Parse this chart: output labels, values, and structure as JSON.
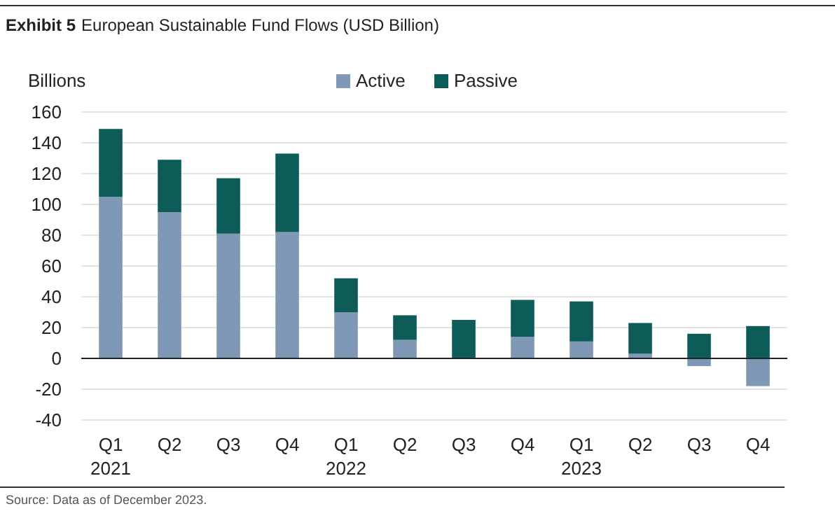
{
  "chart_data": {
    "type": "bar",
    "title": "Exhibit 5",
    "subtitle": "European Sustainable Fund Flows (USD Billion)",
    "ylabel": "Billions",
    "categories": [
      "Q1\n2021",
      "Q2",
      "Q3",
      "Q4",
      "Q1\n2022",
      "Q2",
      "Q3",
      "Q4",
      "Q1\n2023",
      "Q2",
      "Q3",
      "Q4"
    ],
    "series": [
      {
        "name": "Active",
        "color": "#7f98b5",
        "values": [
          105,
          95,
          81,
          82,
          30,
          12,
          0,
          14,
          11,
          3,
          -5,
          -18
        ]
      },
      {
        "name": "Passive",
        "color": "#0d5c57",
        "values": [
          44,
          34,
          36,
          51,
          22,
          16,
          25,
          24,
          26,
          20,
          16,
          21
        ]
      }
    ],
    "stacked": true,
    "ylim": [
      -40,
      160
    ],
    "yticks": [
      -40,
      -20,
      0,
      20,
      40,
      60,
      80,
      100,
      120,
      140,
      160
    ],
    "grid": "y",
    "legend": "top",
    "annotations": [
      "Source: Data as of December 2023."
    ]
  }
}
